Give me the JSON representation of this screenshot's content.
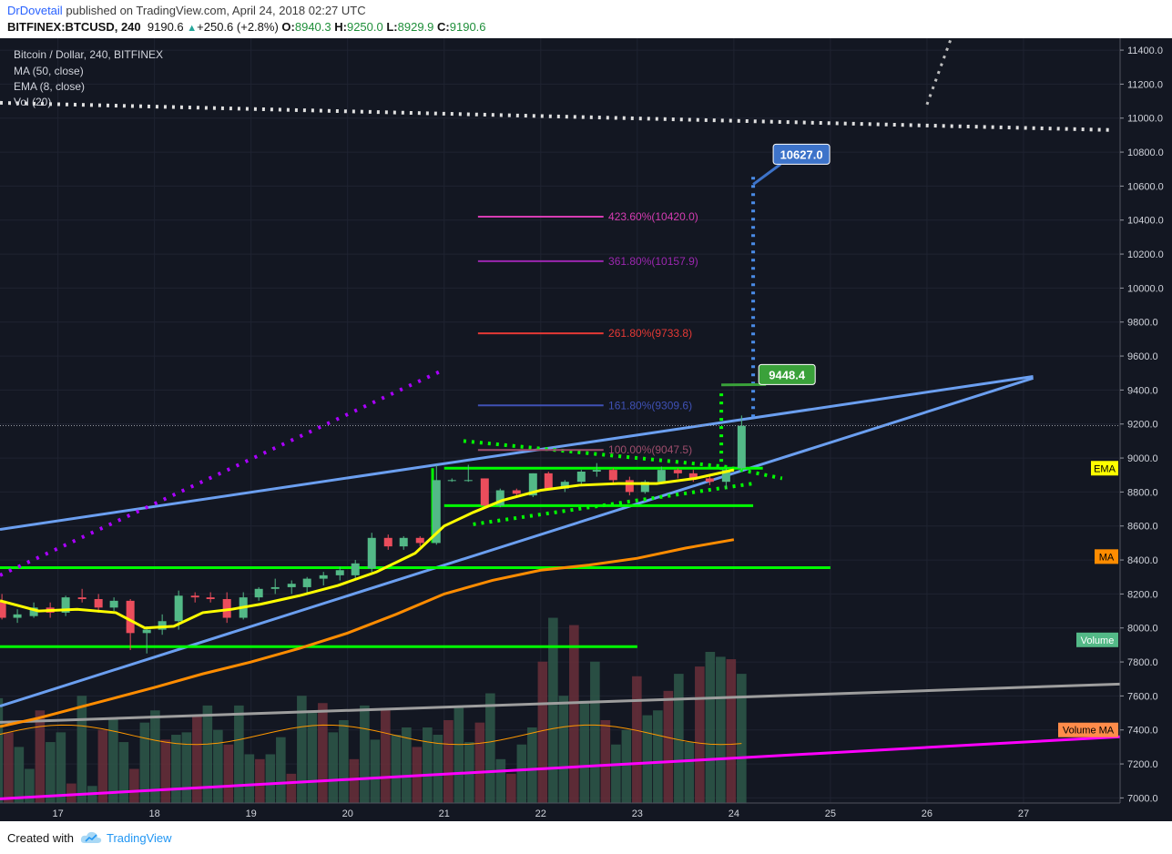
{
  "header": {
    "author": "DrDovetail",
    "published_text": "published on TradingView.com, April 24, 2018 02:27 UTC",
    "symbol": "BITFINEX:BTCUSD, 240",
    "last": "9190.6",
    "change": "+250.6 (+2.8%)",
    "o_label": "O:",
    "o_value": "8940.3",
    "h_label": "H:",
    "h_value": "9250.0",
    "l_label": "L:",
    "l_value": "8929.9",
    "c_label": "C:",
    "c_value": "9190.6"
  },
  "legend": {
    "title": "Bitcoin / Dollar, 240, BITFINEX",
    "ma": "MA (50, close)",
    "ema": "EMA (8, close)",
    "vol": "Vol (20)"
  },
  "footer": {
    "created_with": "Created with",
    "brand": "TradingView"
  },
  "colors": {
    "background": "#131722",
    "candle_up": "#53b987",
    "candle_down": "#eb4d5c",
    "ema": "#ffff00",
    "ma": "#ff8c00",
    "trend": "#6b9ff0",
    "magenta": "#ff00ff",
    "green_levels": "#00ff00"
  },
  "chart_data": {
    "type": "candlestick",
    "price_axis": {
      "ticks": [
        "11400.0",
        "11200.0",
        "11000.0",
        "10800.0",
        "10600.0",
        "10400.0",
        "10200.0",
        "10000.0",
        "9800.0",
        "9600.0",
        "9400.0",
        "9200.0",
        "9000.0",
        "8800.0",
        "8600.0",
        "8400.0",
        "8200.0",
        "8000.0",
        "7800.0",
        "7600.0",
        "7400.0",
        "7200.0",
        "7000.0"
      ],
      "range": [
        6970,
        11470
      ]
    },
    "time_axis": {
      "ticks": [
        "17",
        "18",
        "19",
        "20",
        "21",
        "22",
        "23",
        "24",
        "25",
        "26",
        "27"
      ],
      "range": [
        16.4,
        28.0
      ]
    },
    "candles": [
      {
        "t": 16.42,
        "o": 8160,
        "h": 8200,
        "l": 8050,
        "c": 8060
      },
      {
        "t": 16.58,
        "o": 8060,
        "h": 8110,
        "l": 8030,
        "c": 8080
      },
      {
        "t": 16.75,
        "o": 8070,
        "h": 8150,
        "l": 8060,
        "c": 8120
      },
      {
        "t": 16.92,
        "o": 8120,
        "h": 8150,
        "l": 8060,
        "c": 8090
      },
      {
        "t": 17.08,
        "o": 8090,
        "h": 8190,
        "l": 8070,
        "c": 8180
      },
      {
        "t": 17.25,
        "o": 8180,
        "h": 8230,
        "l": 8150,
        "c": 8170
      },
      {
        "t": 17.42,
        "o": 8170,
        "h": 8200,
        "l": 8090,
        "c": 8120
      },
      {
        "t": 17.58,
        "o": 8120,
        "h": 8180,
        "l": 8100,
        "c": 8160
      },
      {
        "t": 17.75,
        "o": 8160,
        "h": 8170,
        "l": 7870,
        "c": 7970
      },
      {
        "t": 17.92,
        "o": 7970,
        "h": 8010,
        "l": 7850,
        "c": 7990
      },
      {
        "t": 18.08,
        "o": 7990,
        "h": 8080,
        "l": 7960,
        "c": 8040
      },
      {
        "t": 18.25,
        "o": 8040,
        "h": 8220,
        "l": 7990,
        "c": 8190
      },
      {
        "t": 18.42,
        "o": 8190,
        "h": 8210,
        "l": 8150,
        "c": 8180
      },
      {
        "t": 18.58,
        "o": 8180,
        "h": 8210,
        "l": 8150,
        "c": 8170
      },
      {
        "t": 18.75,
        "o": 8170,
        "h": 8210,
        "l": 8030,
        "c": 8060
      },
      {
        "t": 18.92,
        "o": 8060,
        "h": 8210,
        "l": 8050,
        "c": 8180
      },
      {
        "t": 19.08,
        "o": 8180,
        "h": 8240,
        "l": 8160,
        "c": 8230
      },
      {
        "t": 19.25,
        "o": 8230,
        "h": 8290,
        "l": 8200,
        "c": 8240
      },
      {
        "t": 19.42,
        "o": 8240,
        "h": 8280,
        "l": 8200,
        "c": 8260
      },
      {
        "t": 19.58,
        "o": 8240,
        "h": 8300,
        "l": 8200,
        "c": 8290
      },
      {
        "t": 19.75,
        "o": 8290,
        "h": 8330,
        "l": 8250,
        "c": 8310
      },
      {
        "t": 19.92,
        "o": 8310,
        "h": 8360,
        "l": 8280,
        "c": 8340
      },
      {
        "t": 20.08,
        "o": 8310,
        "h": 8400,
        "l": 8290,
        "c": 8380
      },
      {
        "t": 20.25,
        "o": 8350,
        "h": 8560,
        "l": 8330,
        "c": 8530
      },
      {
        "t": 20.42,
        "o": 8530,
        "h": 8550,
        "l": 8460,
        "c": 8480
      },
      {
        "t": 20.58,
        "o": 8480,
        "h": 8540,
        "l": 8460,
        "c": 8530
      },
      {
        "t": 20.75,
        "o": 8530,
        "h": 8540,
        "l": 8480,
        "c": 8500
      },
      {
        "t": 20.92,
        "o": 8500,
        "h": 8960,
        "l": 8490,
        "c": 8870
      },
      {
        "t": 21.08,
        "o": 8870,
        "h": 8880,
        "l": 8860,
        "c": 8870
      },
      {
        "t": 21.25,
        "o": 8870,
        "h": 8960,
        "l": 8860,
        "c": 8870
      },
      {
        "t": 21.42,
        "o": 8880,
        "h": 8880,
        "l": 8700,
        "c": 8720
      },
      {
        "t": 21.58,
        "o": 8720,
        "h": 8820,
        "l": 8710,
        "c": 8810
      },
      {
        "t": 21.75,
        "o": 8810,
        "h": 8820,
        "l": 8770,
        "c": 8790
      },
      {
        "t": 21.92,
        "o": 8780,
        "h": 8910,
        "l": 8770,
        "c": 8910
      },
      {
        "t": 22.08,
        "o": 8910,
        "h": 8920,
        "l": 8810,
        "c": 8820
      },
      {
        "t": 22.25,
        "o": 8820,
        "h": 8870,
        "l": 8800,
        "c": 8860
      },
      {
        "t": 22.42,
        "o": 8860,
        "h": 8930,
        "l": 8840,
        "c": 8920
      },
      {
        "t": 22.58,
        "o": 8920,
        "h": 8970,
        "l": 8890,
        "c": 8930
      },
      {
        "t": 22.75,
        "o": 8930,
        "h": 8940,
        "l": 8850,
        "c": 8870
      },
      {
        "t": 22.92,
        "o": 8870,
        "h": 8890,
        "l": 8780,
        "c": 8800
      },
      {
        "t": 23.08,
        "o": 8800,
        "h": 8870,
        "l": 8790,
        "c": 8860
      },
      {
        "t": 23.25,
        "o": 8860,
        "h": 8950,
        "l": 8850,
        "c": 8930
      },
      {
        "t": 23.42,
        "o": 8930,
        "h": 8940,
        "l": 8880,
        "c": 8910
      },
      {
        "t": 23.58,
        "o": 8910,
        "h": 8930,
        "l": 8860,
        "c": 8880
      },
      {
        "t": 23.75,
        "o": 8880,
        "h": 8900,
        "l": 8840,
        "c": 8860
      },
      {
        "t": 23.92,
        "o": 8860,
        "h": 8940,
        "l": 8820,
        "c": 8930
      },
      {
        "t": 24.08,
        "o": 8940,
        "h": 9250,
        "l": 8930,
        "c": 9190
      }
    ],
    "ema_8": [
      [
        16.4,
        8160
      ],
      [
        16.8,
        8100
      ],
      [
        17.2,
        8110
      ],
      [
        17.6,
        8090
      ],
      [
        17.9,
        8000
      ],
      [
        18.2,
        8010
      ],
      [
        18.5,
        8090
      ],
      [
        18.8,
        8110
      ],
      [
        19.1,
        8140
      ],
      [
        19.5,
        8190
      ],
      [
        19.9,
        8250
      ],
      [
        20.3,
        8330
      ],
      [
        20.7,
        8440
      ],
      [
        21.0,
        8600
      ],
      [
        21.3,
        8680
      ],
      [
        21.6,
        8750
      ],
      [
        22.0,
        8810
      ],
      [
        22.4,
        8840
      ],
      [
        22.8,
        8850
      ],
      [
        23.2,
        8850
      ],
      [
        23.6,
        8880
      ],
      [
        24.0,
        8930
      ]
    ],
    "ma_50": [
      [
        16.4,
        7420
      ],
      [
        16.8,
        7470
      ],
      [
        17.2,
        7530
      ],
      [
        17.6,
        7590
      ],
      [
        18.0,
        7650
      ],
      [
        18.5,
        7730
      ],
      [
        19.0,
        7800
      ],
      [
        19.5,
        7880
      ],
      [
        20.0,
        7970
      ],
      [
        20.5,
        8080
      ],
      [
        21.0,
        8200
      ],
      [
        21.5,
        8280
      ],
      [
        22.0,
        8340
      ],
      [
        22.5,
        8370
      ],
      [
        23.0,
        8410
      ],
      [
        23.5,
        8470
      ],
      [
        24.0,
        8520
      ]
    ],
    "volume": {
      "y_top_price": 8060,
      "values": [
        2150,
        1450,
        1150,
        700,
        1900,
        1250,
        1450,
        400,
        2200,
        350,
        1500,
        1750,
        1250,
        700,
        1650,
        1900,
        1300,
        1400,
        1450,
        1800,
        2000,
        1500,
        1200,
        2000,
        1000,
        900,
        1000,
        1350,
        600,
        2200,
        1900,
        2050,
        1450,
        1700,
        900,
        2000,
        1300,
        1950,
        1400,
        1550,
        1150,
        1550,
        1400,
        1700,
        1950,
        1250,
        1650,
        2250,
        900,
        600,
        1200,
        1550,
        2900,
        3800,
        2200,
        3650,
        2100,
        2900,
        1700,
        1200,
        1500,
        2600,
        1800,
        1900,
        2300,
        2650,
        1250,
        2800,
        3100,
        3000,
        2950,
        2650
      ]
    },
    "fib_levels": [
      {
        "label": "423.60%(10420.0)",
        "price": 10420.0,
        "color": "#d63cb3"
      },
      {
        "label": "361.80%(10157.9)",
        "price": 10157.9,
        "color": "#9c27b0"
      },
      {
        "label": "261.80%(9733.8)",
        "price": 9733.8,
        "color": "#e53935"
      },
      {
        "label": "161.80%(9309.6)",
        "price": 9309.6,
        "color": "#3f51b5"
      },
      {
        "label": "100.00%(9047.5)",
        "price": 9047.5,
        "color": "#9e4d6c"
      }
    ],
    "callouts": [
      {
        "label": "10627.0",
        "price": 10627.0,
        "color": "#3d73c9"
      },
      {
        "label": "9448.4",
        "price": 9448.4,
        "color": "#3aa13a"
      }
    ],
    "axis_badges": [
      "EMA",
      "MA",
      "Volume",
      "Volume MA"
    ]
  }
}
